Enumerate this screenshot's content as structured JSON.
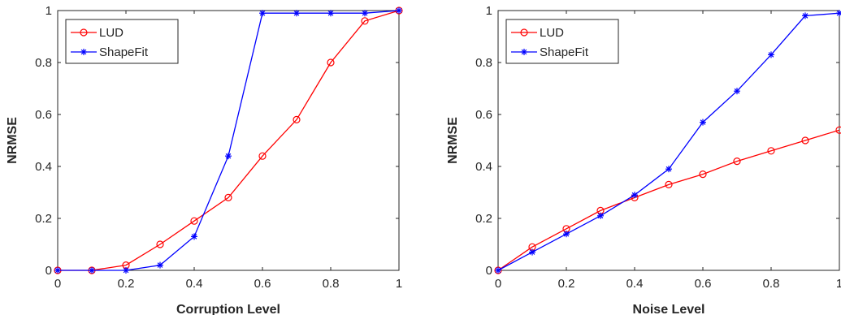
{
  "chart_data": [
    {
      "type": "line",
      "xlabel": "Corruption Level",
      "ylabel": "NRMSE",
      "xlim": [
        0,
        1
      ],
      "ylim": [
        0,
        1
      ],
      "xticks": [
        "0",
        "0.2",
        "0.4",
        "0.6",
        "0.8",
        "1"
      ],
      "yticks": [
        "0",
        "0.2",
        "0.4",
        "0.6",
        "0.8",
        "1"
      ],
      "grid": false,
      "legend_position": "top-left",
      "x": [
        0,
        0.1,
        0.2,
        0.3,
        0.4,
        0.5,
        0.6,
        0.7,
        0.8,
        0.9,
        1.0
      ],
      "series": [
        {
          "name": "LUD",
          "color": "#ff0000",
          "marker": "circle",
          "values": [
            0,
            0,
            0.02,
            0.1,
            0.19,
            0.28,
            0.44,
            0.58,
            0.8,
            0.96,
            1.0
          ]
        },
        {
          "name": "ShapeFit",
          "color": "#0000ff",
          "marker": "star",
          "values": [
            0,
            0,
            0,
            0.02,
            0.13,
            0.44,
            0.99,
            0.99,
            0.99,
            0.99,
            1.0
          ]
        }
      ]
    },
    {
      "type": "line",
      "xlabel": "Noise Level",
      "ylabel": "NRMSE",
      "xlim": [
        0,
        1
      ],
      "ylim": [
        0,
        1
      ],
      "xticks": [
        "0",
        "0.2",
        "0.4",
        "0.6",
        "0.8",
        "1"
      ],
      "yticks": [
        "0",
        "0.2",
        "0.4",
        "0.6",
        "0.8",
        "1"
      ],
      "grid": false,
      "legend_position": "top-left",
      "x": [
        0,
        0.1,
        0.2,
        0.3,
        0.4,
        0.5,
        0.6,
        0.7,
        0.8,
        0.9,
        1.0
      ],
      "series": [
        {
          "name": "LUD",
          "color": "#ff0000",
          "marker": "circle",
          "values": [
            0,
            0.09,
            0.16,
            0.23,
            0.28,
            0.33,
            0.37,
            0.42,
            0.46,
            0.5,
            0.54
          ]
        },
        {
          "name": "ShapeFit",
          "color": "#0000ff",
          "marker": "star",
          "values": [
            0,
            0.07,
            0.14,
            0.21,
            0.29,
            0.39,
            0.57,
            0.69,
            0.83,
            0.98,
            0.99
          ]
        }
      ]
    }
  ]
}
